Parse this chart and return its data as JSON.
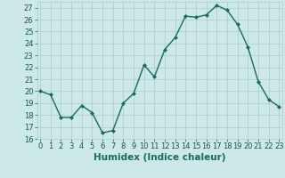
{
  "title": "",
  "xlabel": "Humidex (Indice chaleur)",
  "ylabel": "",
  "x": [
    0,
    1,
    2,
    3,
    4,
    5,
    6,
    7,
    8,
    9,
    10,
    11,
    12,
    13,
    14,
    15,
    16,
    17,
    18,
    19,
    20,
    21,
    22,
    23
  ],
  "y": [
    20.0,
    19.7,
    17.8,
    17.8,
    18.8,
    18.2,
    16.5,
    16.7,
    19.0,
    19.8,
    22.2,
    21.2,
    23.5,
    24.5,
    26.3,
    26.2,
    26.4,
    27.2,
    26.8,
    25.6,
    23.7,
    20.8,
    19.3,
    18.7
  ],
  "line_color": "#1a6b5a",
  "marker": "D",
  "marker_size": 2.0,
  "bg_color": "#cce8e8",
  "grid_color": "#aacccc",
  "ylim": [
    16,
    27.5
  ],
  "xlim": [
    -0.3,
    23.3
  ],
  "yticks": [
    16,
    17,
    18,
    19,
    20,
    21,
    22,
    23,
    24,
    25,
    26,
    27
  ],
  "xticks": [
    0,
    1,
    2,
    3,
    4,
    5,
    6,
    7,
    8,
    9,
    10,
    11,
    12,
    13,
    14,
    15,
    16,
    17,
    18,
    19,
    20,
    21,
    22,
    23
  ],
  "tick_fontsize": 6.0,
  "xlabel_fontsize": 7.5,
  "line_width": 1.0
}
